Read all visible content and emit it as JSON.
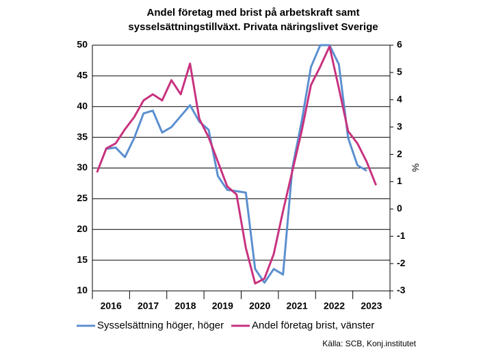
{
  "chart_data": {
    "type": "line",
    "title": [
      "Andel företag med brist på arbetskraft samt",
      "sysselsättningstillväxt. Privata näringslivet Sverige"
    ],
    "y2_label": "%",
    "source": "Källa: SCB, Konj.institutet",
    "categories": [
      "2016",
      null,
      null,
      null,
      "2017",
      null,
      null,
      null,
      "2018",
      null,
      null,
      null,
      "2019",
      null,
      null,
      null,
      "2020",
      null,
      null,
      null,
      "2021",
      null,
      null,
      null,
      "2022",
      null,
      null,
      null,
      "2023",
      null,
      null,
      null
    ],
    "series": [
      {
        "name": "Sysselsättning höger, höger",
        "color": "#5b8fd0",
        "axis": "y2",
        "values": [
          null,
          2.2,
          2.25,
          1.9,
          2.6,
          3.5,
          3.6,
          2.8,
          3.0,
          3.4,
          3.8,
          3.2,
          2.9,
          1.2,
          0.7,
          0.65,
          0.6,
          -2.2,
          -2.7,
          -2.2,
          -2.4,
          1.5,
          3.2,
          5.2,
          6,
          6,
          5.3,
          2.6,
          1.6,
          1.4,
          null,
          null
        ]
      },
      {
        "name": "Andel företag brist, vänster",
        "color": "#c8327f",
        "values": [
          29.3,
          33.2,
          34,
          36.3,
          38.3,
          41,
          42,
          41,
          44.3,
          42,
          47,
          38,
          35,
          31,
          27,
          25.7,
          17,
          11.2,
          12,
          16,
          23,
          29.5,
          36,
          43.5,
          46.5,
          49.8,
          43,
          36,
          34,
          31,
          27.2,
          null
        ]
      }
    ],
    "ylim": [
      10,
      50
    ],
    "yticks": [
      10,
      15,
      20,
      25,
      30,
      35,
      40,
      45,
      50
    ],
    "y2lim": [
      -3,
      6
    ],
    "y2ticks": [
      -3,
      -2,
      -1,
      0,
      1,
      2,
      3,
      4,
      5,
      6
    ],
    "grid": true,
    "legend": "bottom"
  }
}
